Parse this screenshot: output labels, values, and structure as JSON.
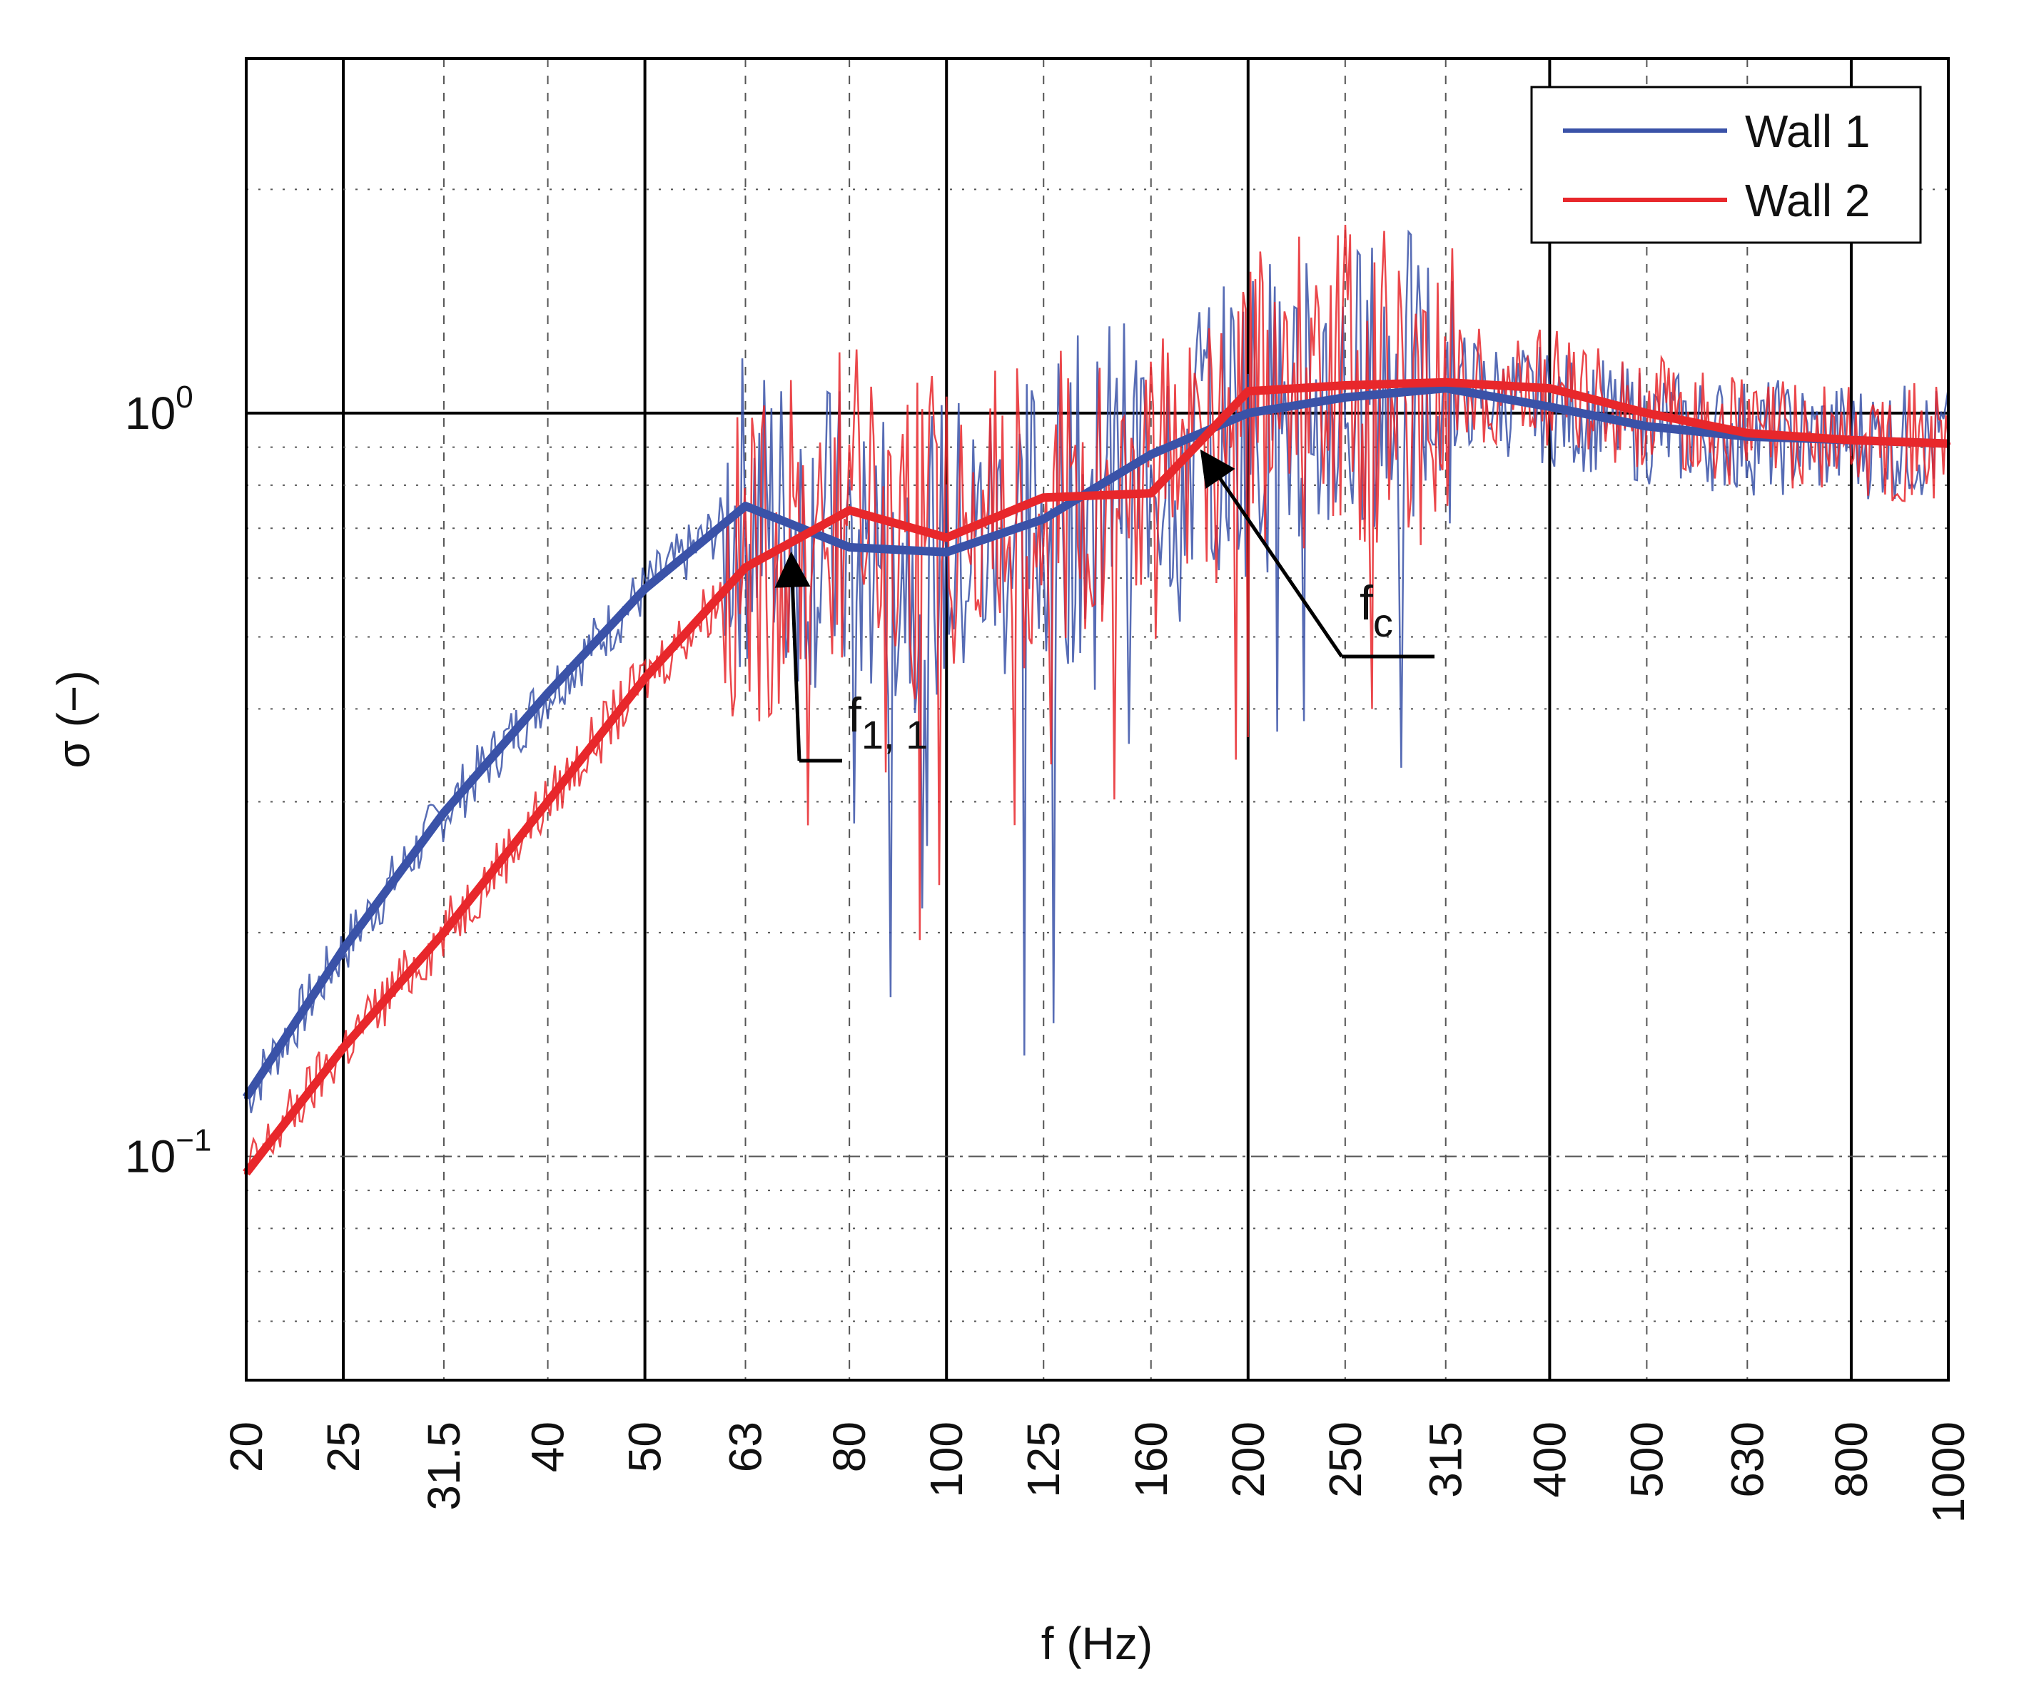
{
  "chart_data": {
    "type": "line",
    "title": "",
    "xlabel": "f (Hz)",
    "ylabel": "σ (−)",
    "xscale": "log",
    "yscale": "log",
    "xlim": [
      20,
      1000
    ],
    "ylim": [
      0.05,
      3.0
    ],
    "categories": [
      "20",
      "25",
      "31.5",
      "40",
      "50",
      "63",
      "80",
      "100",
      "125",
      "160",
      "200",
      "250",
      "315",
      "400",
      "500",
      "630",
      "800",
      "1000"
    ],
    "x": [
      20,
      25,
      31.5,
      40,
      50,
      63,
      80,
      100,
      125,
      160,
      200,
      250,
      315,
      400,
      500,
      630,
      800,
      1000
    ],
    "y_major_ticks": [
      {
        "value": 1.0,
        "base": "10",
        "exp": "0"
      },
      {
        "value": 0.1,
        "base": "10",
        "exp": "−1"
      }
    ],
    "grid": true,
    "legend_position": "top-right",
    "series": [
      {
        "name": "Wall 1",
        "color": "#3a52a8",
        "values": [
          0.12,
          0.19,
          0.29,
          0.42,
          0.58,
          0.75,
          0.66,
          0.65,
          0.72,
          0.88,
          1.0,
          1.05,
          1.08,
          1.02,
          0.96,
          0.93,
          0.92,
          0.91
        ]
      },
      {
        "name": "Wall 2",
        "color": "#e8272b",
        "values": [
          0.095,
          0.14,
          0.2,
          0.3,
          0.44,
          0.62,
          0.74,
          0.68,
          0.77,
          0.78,
          1.07,
          1.09,
          1.1,
          1.08,
          1.0,
          0.94,
          0.92,
          0.91
        ]
      }
    ],
    "annotations": [
      {
        "label": "f",
        "sub": "1, 1",
        "points_to_x": 70,
        "points_to_series": "Wall 2"
      },
      {
        "label": "f",
        "sub": "c",
        "points_to_x": 180,
        "points_to_series": "Wall 2"
      }
    ]
  }
}
